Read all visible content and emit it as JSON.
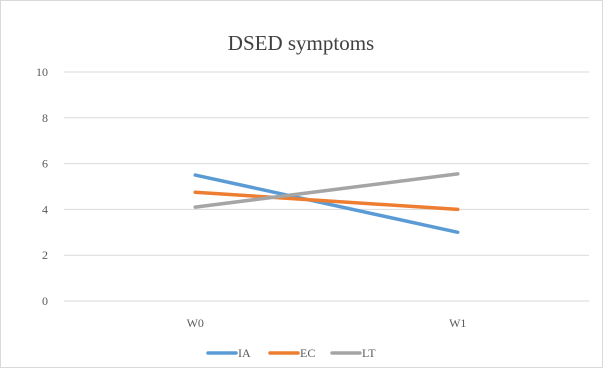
{
  "chart_data": {
    "type": "line",
    "title": "DSED symptoms",
    "categories": [
      "W0",
      "W1"
    ],
    "series": [
      {
        "name": "IA",
        "values": [
          5.5,
          3.0
        ],
        "color": "#5b9bd5"
      },
      {
        "name": "EC",
        "values": [
          4.75,
          4.0
        ],
        "color": "#ed7d31"
      },
      {
        "name": "LT",
        "values": [
          4.1,
          5.55
        ],
        "color": "#a5a5a5"
      }
    ],
    "ylim": [
      0,
      10
    ],
    "yticks": [
      "0",
      "2",
      "4",
      "6",
      "8",
      "10"
    ],
    "grid": true,
    "legend": "bottom"
  }
}
